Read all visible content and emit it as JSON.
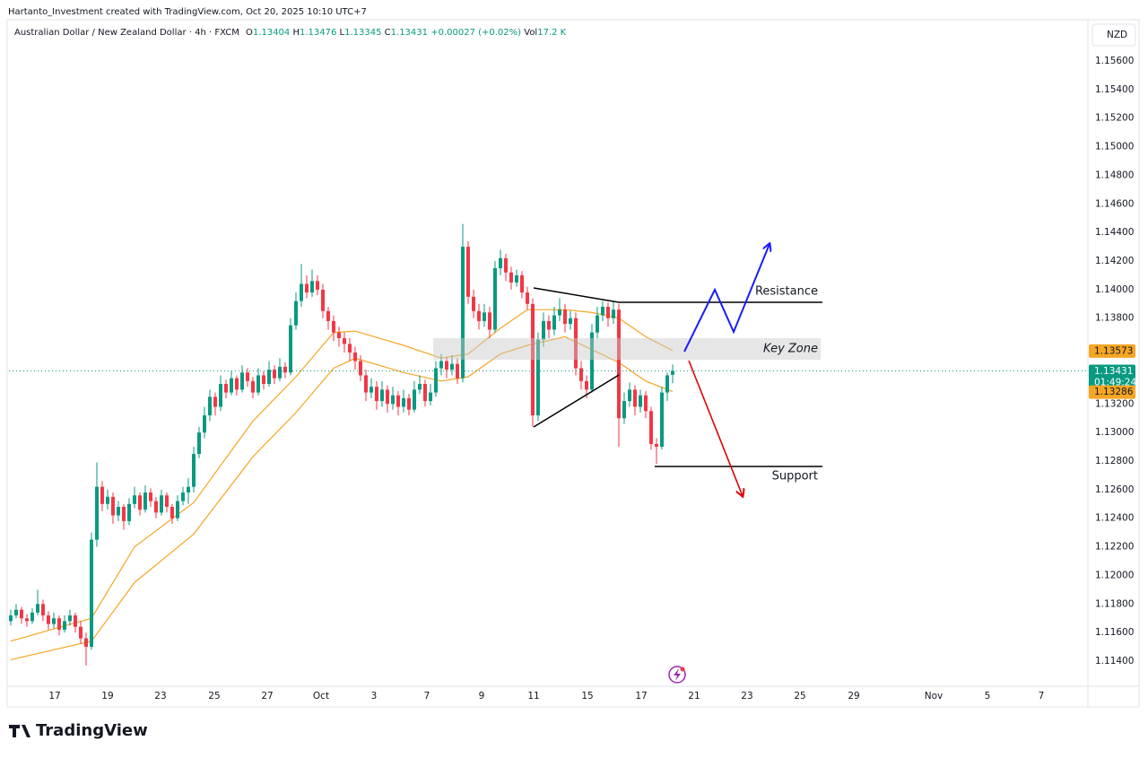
{
  "header": "Hartanto_Investment created with TradingView.com, Oct 20, 2025 10:10 UTC+7",
  "brand": "TradingView",
  "chart_data": {
    "type": "candlestick",
    "title": "Australian Dollar / New Zealand Dollar · 4h · FXCM",
    "ohlc_letters": [
      "O",
      "H",
      "L",
      "C"
    ],
    "change": "+0.00027 (+0.02%)",
    "volume_label": "Vol",
    "volume": "17.2 K",
    "currency": "NZD",
    "up_color": "#089981",
    "down_color": "#f23645",
    "grid": false,
    "xlim": [
      -0.33,
      200.17
    ],
    "ylim": [
      1.11237,
      1.1587
    ],
    "yticks": [
      {
        "value": 1.114,
        "label": "1.11400"
      },
      {
        "value": 1.116,
        "label": "1.11600"
      },
      {
        "value": 1.118,
        "label": "1.11800"
      },
      {
        "value": 1.12,
        "label": "1.12000"
      },
      {
        "value": 1.122,
        "label": "1.12200"
      },
      {
        "value": 1.124,
        "label": "1.12400"
      },
      {
        "value": 1.126,
        "label": "1.12600"
      },
      {
        "value": 1.128,
        "label": "1.12800"
      },
      {
        "value": 1.13,
        "label": "1.13000"
      },
      {
        "value": 1.132,
        "label": "1.13200"
      },
      {
        "value": 1.138,
        "label": "1.13800"
      },
      {
        "value": 1.14,
        "label": "1.14000"
      },
      {
        "value": 1.142,
        "label": "1.14200"
      },
      {
        "value": 1.144,
        "label": "1.14400"
      },
      {
        "value": 1.146,
        "label": "1.14600"
      },
      {
        "value": 1.148,
        "label": "1.14800"
      },
      {
        "value": 1.15,
        "label": "1.15000"
      },
      {
        "value": 1.152,
        "label": "1.15200"
      },
      {
        "value": 1.154,
        "label": "1.15400"
      },
      {
        "value": 1.156,
        "label": "1.15600"
      }
    ],
    "xticks": [
      {
        "value": 8.17,
        "label": "17"
      },
      {
        "value": 18,
        "label": "19"
      },
      {
        "value": 27.83,
        "label": "23"
      },
      {
        "value": 37.83,
        "label": "25"
      },
      {
        "value": 47.67,
        "label": "27"
      },
      {
        "value": 57.67,
        "label": "Oct"
      },
      {
        "value": 67.5,
        "label": "3"
      },
      {
        "value": 77.33,
        "label": "7"
      },
      {
        "value": 87.5,
        "label": "9"
      },
      {
        "value": 97.17,
        "label": "11"
      },
      {
        "value": 107.17,
        "label": "15"
      },
      {
        "value": 117.17,
        "label": "17"
      },
      {
        "value": 127,
        "label": "21"
      },
      {
        "value": 136.83,
        "label": "23"
      },
      {
        "value": 146.67,
        "label": "25"
      },
      {
        "value": 156.67,
        "label": "29"
      },
      {
        "value": 171.5,
        "label": "Nov"
      },
      {
        "value": 181.5,
        "label": "5"
      },
      {
        "value": 191.5,
        "label": "7"
      }
    ],
    "ohlc": [
      [
        1.1168,
        1.1176,
        1.1165,
        1.1172
      ],
      [
        1.1172,
        1.118,
        1.117,
        1.1176
      ],
      [
        1.1176,
        1.1178,
        1.1166,
        1.117
      ],
      [
        1.117,
        1.1173,
        1.1164,
        1.1168
      ],
      [
        1.1168,
        1.1177,
        1.1166,
        1.1174
      ],
      [
        1.1174,
        1.119,
        1.1172,
        1.118
      ],
      [
        1.118,
        1.1183,
        1.1168,
        1.1172
      ],
      [
        1.1172,
        1.1175,
        1.1162,
        1.1166
      ],
      [
        1.1166,
        1.1174,
        1.1163,
        1.117
      ],
      [
        1.117,
        1.1172,
        1.1158,
        1.1162
      ],
      [
        1.1162,
        1.1172,
        1.116,
        1.1168
      ],
      [
        1.1168,
        1.1176,
        1.1165,
        1.1172
      ],
      [
        1.1172,
        1.1174,
        1.116,
        1.1164
      ],
      [
        1.1164,
        1.1168,
        1.1152,
        1.1156
      ],
      [
        1.1156,
        1.116,
        1.1137,
        1.115
      ],
      [
        1.115,
        1.123,
        1.1148,
        1.1225
      ],
      [
        1.1225,
        1.1279,
        1.122,
        1.1262
      ],
      [
        1.1262,
        1.1266,
        1.1245,
        1.125
      ],
      [
        1.125,
        1.126,
        1.1246,
        1.1255
      ],
      [
        1.1255,
        1.1258,
        1.1236,
        1.1242
      ],
      [
        1.1242,
        1.1252,
        1.1238,
        1.1248
      ],
      [
        1.1248,
        1.125,
        1.1232,
        1.1238
      ],
      [
        1.1238,
        1.1254,
        1.1235,
        1.125
      ],
      [
        1.125,
        1.1262,
        1.1247,
        1.1256
      ],
      [
        1.1256,
        1.1258,
        1.1242,
        1.1246
      ],
      [
        1.1246,
        1.1263,
        1.1244,
        1.1258
      ],
      [
        1.1258,
        1.1261,
        1.1248,
        1.1252
      ],
      [
        1.1252,
        1.1255,
        1.124,
        1.1244
      ],
      [
        1.1244,
        1.126,
        1.1242,
        1.1256
      ],
      [
        1.1256,
        1.1258,
        1.1244,
        1.1248
      ],
      [
        1.1248,
        1.125,
        1.1236,
        1.124
      ],
      [
        1.124,
        1.1256,
        1.1238,
        1.1252
      ],
      [
        1.1252,
        1.1262,
        1.1249,
        1.1258
      ],
      [
        1.1258,
        1.1268,
        1.125,
        1.1262
      ],
      [
        1.1262,
        1.129,
        1.1258,
        1.1285
      ],
      [
        1.1285,
        1.1304,
        1.1282,
        1.13
      ],
      [
        1.13,
        1.1318,
        1.1296,
        1.1312
      ],
      [
        1.1312,
        1.133,
        1.1308,
        1.1325
      ],
      [
        1.1325,
        1.1328,
        1.1312,
        1.1318
      ],
      [
        1.1318,
        1.134,
        1.1315,
        1.1334
      ],
      [
        1.1334,
        1.1337,
        1.1324,
        1.1328
      ],
      [
        1.1328,
        1.1343,
        1.1326,
        1.1338
      ],
      [
        1.1338,
        1.134,
        1.1326,
        1.133
      ],
      [
        1.133,
        1.1347,
        1.1328,
        1.1342
      ],
      [
        1.1342,
        1.1345,
        1.1332,
        1.1336
      ],
      [
        1.1336,
        1.1339,
        1.1324,
        1.1328
      ],
      [
        1.1328,
        1.1345,
        1.1326,
        1.134
      ],
      [
        1.134,
        1.1343,
        1.133,
        1.1334
      ],
      [
        1.1334,
        1.135,
        1.1332,
        1.1344
      ],
      [
        1.1344,
        1.1347,
        1.1334,
        1.1338
      ],
      [
        1.1338,
        1.1352,
        1.1336,
        1.1346
      ],
      [
        1.1346,
        1.1349,
        1.1338,
        1.1342
      ],
      [
        1.1342,
        1.138,
        1.134,
        1.1375
      ],
      [
        1.1375,
        1.1398,
        1.1372,
        1.1392
      ],
      [
        1.1392,
        1.1418,
        1.1388,
        1.1404
      ],
      [
        1.1404,
        1.141,
        1.1394,
        1.1398
      ],
      [
        1.1398,
        1.1414,
        1.1395,
        1.1406
      ],
      [
        1.1406,
        1.141,
        1.1396,
        1.14
      ],
      [
        1.14,
        1.1404,
        1.138,
        1.1385
      ],
      [
        1.1385,
        1.1388,
        1.1372,
        1.1378
      ],
      [
        1.1378,
        1.1382,
        1.1364,
        1.137
      ],
      [
        1.137,
        1.1374,
        1.136,
        1.1366
      ],
      [
        1.1366,
        1.137,
        1.1356,
        1.1362
      ],
      [
        1.1362,
        1.1366,
        1.135,
        1.1356
      ],
      [
        1.1356,
        1.136,
        1.1344,
        1.135
      ],
      [
        1.135,
        1.1354,
        1.1336,
        1.134
      ],
      [
        1.134,
        1.1344,
        1.1322,
        1.1328
      ],
      [
        1.1328,
        1.1338,
        1.1324,
        1.1332
      ],
      [
        1.1332,
        1.1336,
        1.1316,
        1.1322
      ],
      [
        1.1322,
        1.1336,
        1.1318,
        1.133
      ],
      [
        1.133,
        1.1333,
        1.1314,
        1.132
      ],
      [
        1.132,
        1.1332,
        1.1316,
        1.1326
      ],
      [
        1.1326,
        1.1329,
        1.1312,
        1.1318
      ],
      [
        1.1318,
        1.133,
        1.1314,
        1.1324
      ],
      [
        1.1324,
        1.1327,
        1.1312,
        1.1316
      ],
      [
        1.1316,
        1.1336,
        1.1314,
        1.133
      ],
      [
        1.133,
        1.134,
        1.1327,
        1.1334
      ],
      [
        1.1334,
        1.1337,
        1.1318,
        1.1322
      ],
      [
        1.1322,
        1.1334,
        1.1319,
        1.1328
      ],
      [
        1.1328,
        1.135,
        1.1325,
        1.1345
      ],
      [
        1.1345,
        1.1355,
        1.134,
        1.135
      ],
      [
        1.135,
        1.1353,
        1.1338,
        1.1344
      ],
      [
        1.1344,
        1.1354,
        1.134,
        1.1348
      ],
      [
        1.1348,
        1.1352,
        1.1334,
        1.1338
      ],
      [
        1.1338,
        1.1446,
        1.1335,
        1.143
      ],
      [
        1.143,
        1.1434,
        1.139,
        1.1395
      ],
      [
        1.1395,
        1.14,
        1.138,
        1.1385
      ],
      [
        1.1385,
        1.139,
        1.1372,
        1.1378
      ],
      [
        1.1378,
        1.139,
        1.1374,
        1.1384
      ],
      [
        1.1384,
        1.1388,
        1.1366,
        1.1372
      ],
      [
        1.1372,
        1.142,
        1.137,
        1.1415
      ],
      [
        1.1415,
        1.1428,
        1.141,
        1.1422
      ],
      [
        1.1422,
        1.1425,
        1.1406,
        1.1412
      ],
      [
        1.1412,
        1.1416,
        1.14,
        1.1405
      ],
      [
        1.1405,
        1.1414,
        1.1402,
        1.141
      ],
      [
        1.141,
        1.1413,
        1.1394,
        1.1398
      ],
      [
        1.1398,
        1.1402,
        1.1386,
        1.139
      ],
      [
        1.139,
        1.1394,
        1.1304,
        1.1312
      ],
      [
        1.1312,
        1.137,
        1.1308,
        1.1365
      ],
      [
        1.1365,
        1.1384,
        1.136,
        1.1378
      ],
      [
        1.1378,
        1.1382,
        1.1366,
        1.1372
      ],
      [
        1.1372,
        1.1388,
        1.1368,
        1.1382
      ],
      [
        1.1382,
        1.1394,
        1.1378,
        1.1386
      ],
      [
        1.1386,
        1.139,
        1.137,
        1.1376
      ],
      [
        1.1376,
        1.1385,
        1.1372,
        1.138
      ],
      [
        1.138,
        1.1384,
        1.134,
        1.1345
      ],
      [
        1.1345,
        1.135,
        1.133,
        1.1336
      ],
      [
        1.1336,
        1.134,
        1.1324,
        1.133
      ],
      [
        1.133,
        1.1376,
        1.1328,
        1.137
      ],
      [
        1.137,
        1.1388,
        1.1366,
        1.1382
      ],
      [
        1.1382,
        1.1392,
        1.1378,
        1.1388
      ],
      [
        1.1388,
        1.1391,
        1.1374,
        1.138
      ],
      [
        1.138,
        1.1392,
        1.1376,
        1.1386
      ],
      [
        1.1386,
        1.139,
        1.129,
        1.131
      ],
      [
        1.131,
        1.1328,
        1.1306,
        1.1322
      ],
      [
        1.1322,
        1.1335,
        1.1318,
        1.133
      ],
      [
        1.133,
        1.1333,
        1.1312,
        1.1318
      ],
      [
        1.1318,
        1.133,
        1.1314,
        1.1326
      ],
      [
        1.1326,
        1.1329,
        1.131,
        1.1315
      ],
      [
        1.1315,
        1.1318,
        1.1288,
        1.1292
      ],
      [
        1.1292,
        1.1296,
        1.1278,
        1.129
      ],
      [
        1.129,
        1.1332,
        1.1288,
        1.1328
      ],
      [
        1.1328,
        1.1342,
        1.1322,
        1.134
      ],
      [
        1.13404,
        1.13476,
        1.13345,
        1.13431
      ]
    ],
    "lines": [
      {
        "color": "#f5a623",
        "x": [
          0,
          15,
          23,
          34,
          45,
          53,
          60,
          64,
          73,
          80,
          85,
          91,
          96,
          103,
          108,
          113,
          118,
          123
        ],
        "values": [
          1.1154,
          1.117,
          1.122,
          1.1251,
          1.1308,
          1.1339,
          1.137,
          1.1371,
          1.1361,
          1.1352,
          1.1355,
          1.1373,
          1.1386,
          1.1386,
          1.1384,
          1.138,
          1.1367,
          1.13573
        ]
      },
      {
        "color": "#f5a623",
        "x": [
          0,
          15,
          23,
          34,
          45,
          53,
          60,
          64,
          73,
          80,
          85,
          91,
          96,
          103,
          108,
          113,
          118,
          123
        ],
        "values": [
          1.1141,
          1.1154,
          1.1195,
          1.1229,
          1.1283,
          1.1314,
          1.1345,
          1.1352,
          1.1342,
          1.1336,
          1.1339,
          1.1355,
          1.1361,
          1.1367,
          1.1358,
          1.1349,
          1.1336,
          1.13286
        ]
      }
    ],
    "price_tags": [
      {
        "value": 1.13573,
        "color": "#f5a623"
      },
      {
        "value": 1.13431,
        "color": "#089981",
        "countdown": "01:49:24"
      },
      {
        "value": 1.13286,
        "color": "#f5a623"
      }
    ],
    "annotations": {
      "resistance": "Resistance",
      "key_zone": "Key Zone",
      "support": "Support"
    }
  }
}
